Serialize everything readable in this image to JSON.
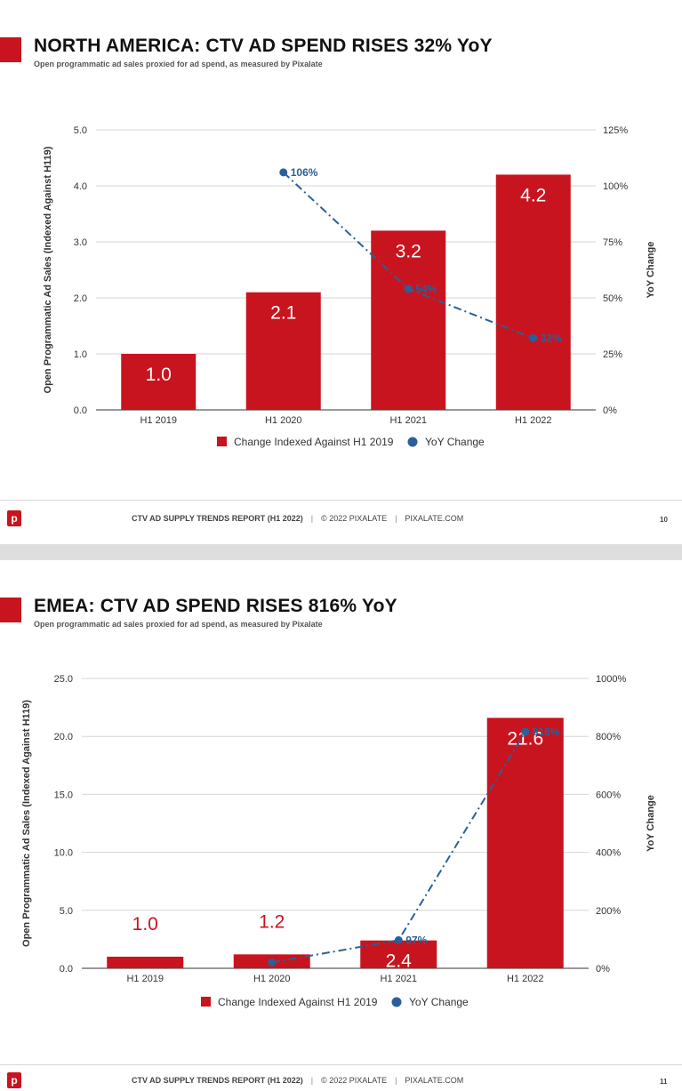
{
  "footer": {
    "report": "CTV AD SUPPLY TRENDS REPORT (H1 2022)",
    "copyright": "© 2022 PIXALATE",
    "site": "PIXALATE.COM",
    "separator": "|",
    "logo_letter": "p"
  },
  "slides": [
    {
      "title": "NORTH AMERICA: CTV AD SPEND RISES 32% YoY",
      "subtitle": "Open programmatic ad sales proxied for ad spend, as measured by Pixalate",
      "page_number": "10"
    },
    {
      "title": "EMEA: CTV AD SPEND RISES 816% YoY",
      "subtitle": "Open programmatic ad sales proxied for ad spend, as measured by Pixalate",
      "page_number": "11"
    }
  ],
  "chart_data": [
    {
      "type": "bar",
      "categories": [
        "H1 2019",
        "H1 2020",
        "H1 2021",
        "H1 2022"
      ],
      "series": [
        {
          "name": "Change Indexed Against H1 2019",
          "type": "bar",
          "axis": "left",
          "values": [
            1.0,
            2.1,
            3.2,
            4.2
          ],
          "labels": [
            "1.0",
            "2.1",
            "3.2",
            "4.2"
          ],
          "color": "#c8141e"
        },
        {
          "name": "YoY Change",
          "type": "line",
          "axis": "right",
          "values": [
            null,
            106,
            54,
            32
          ],
          "labels": [
            "",
            "106%",
            "54%",
            "32%"
          ],
          "color": "#2a6099"
        }
      ],
      "ylabel": "Open Programmatic Ad Sales (Indexed Against H119)",
      "y2label": "YoY Change",
      "ylim": [
        0,
        5
      ],
      "y2lim": [
        0,
        125
      ],
      "yticks": [
        "0.0",
        "1.0",
        "2.0",
        "3.0",
        "4.0",
        "5.0"
      ],
      "y2ticks": [
        "0%",
        "25%",
        "50%",
        "75%",
        "100%",
        "125%"
      ],
      "grid": true,
      "legend": "bottom"
    },
    {
      "type": "bar",
      "categories": [
        "H1 2019",
        "H1 2020",
        "H1 2021",
        "H1 2022"
      ],
      "series": [
        {
          "name": "Change Indexed Against H1 2019",
          "type": "bar",
          "axis": "left",
          "values": [
            1.0,
            1.2,
            2.4,
            21.6
          ],
          "labels": [
            "1.0",
            "1.2",
            "2.4",
            "21.6"
          ],
          "color": "#c8141e"
        },
        {
          "name": "YoY Change",
          "type": "line",
          "axis": "right",
          "values": [
            null,
            20,
            97,
            816
          ],
          "labels": [
            "",
            "",
            "97%",
            "816%"
          ],
          "color": "#2a6099"
        }
      ],
      "ylabel": "Open Programmatic Ad Sales (Indexed Against H119)",
      "y2label": "YoY Change",
      "ylim": [
        0,
        25
      ],
      "y2lim": [
        0,
        1000
      ],
      "yticks": [
        "0.0",
        "5.0",
        "10.0",
        "15.0",
        "20.0",
        "25.0"
      ],
      "y2ticks": [
        "0%",
        "200%",
        "400%",
        "600%",
        "800%",
        "1000%"
      ],
      "grid": true,
      "legend": "bottom"
    }
  ]
}
